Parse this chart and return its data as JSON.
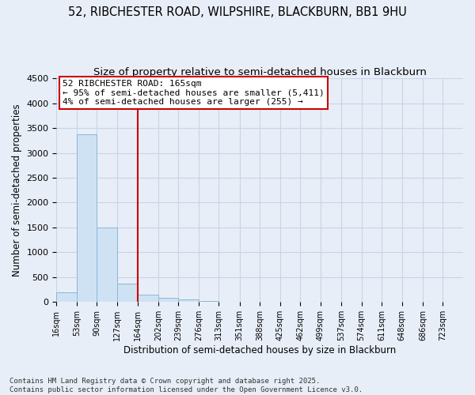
{
  "title1": "52, RIBCHESTER ROAD, WILPSHIRE, BLACKBURN, BB1 9HU",
  "title2": "Size of property relative to semi-detached houses in Blackburn",
  "xlabel": "Distribution of semi-detached houses by size in Blackburn",
  "ylabel": "Number of semi-detached properties",
  "footer1": "Contains HM Land Registry data © Crown copyright and database right 2025.",
  "footer2": "Contains public sector information licensed under the Open Government Licence v3.0.",
  "annotation_line1": "52 RIBCHESTER ROAD: 165sqm",
  "annotation_line2": "← 95% of semi-detached houses are smaller (5,411)",
  "annotation_line3": "4% of semi-detached houses are larger (255) →",
  "vline_x": 164,
  "bar_color": "#cfe2f3",
  "bar_edge_color": "#8ab8d8",
  "vline_color": "#cc0000",
  "annotation_box_edge": "#cc0000",
  "annotation_box_face": "white",
  "ylim": [
    0,
    4500
  ],
  "yticks": [
    0,
    500,
    1000,
    1500,
    2000,
    2500,
    3000,
    3500,
    4000,
    4500
  ],
  "bins": [
    16,
    53,
    90,
    127,
    164,
    202,
    239,
    276,
    313,
    351,
    388,
    425,
    462,
    499,
    537,
    574,
    611,
    648,
    686,
    723,
    760
  ],
  "counts": [
    190,
    3370,
    1500,
    370,
    150,
    90,
    55,
    25,
    10,
    5,
    0,
    0,
    0,
    0,
    0,
    0,
    0,
    0,
    0,
    0
  ],
  "background_color": "#e8eef8",
  "grid_color": "#c8d4e8",
  "title1_fontsize": 10.5,
  "title2_fontsize": 9.5,
  "axis_label_fontsize": 8.5,
  "tick_fontsize": 8,
  "annotation_fontsize": 8,
  "footer_fontsize": 6.5
}
